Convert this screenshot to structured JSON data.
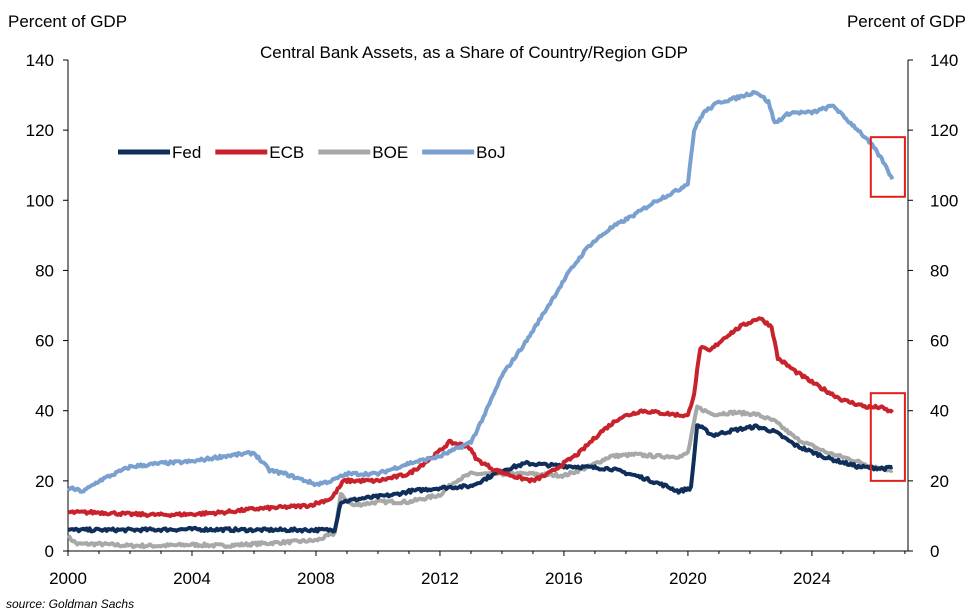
{
  "chart_data": {
    "type": "line",
    "title": "Central Bank Assets, as a Share of Country/Region GDP",
    "ylabel_left": "Percent of GDP",
    "ylabel_right": "Percent of GDP",
    "source": "source: Goldman Sachs",
    "xlim": [
      2000,
      2027.1
    ],
    "ylim": [
      0,
      140
    ],
    "xticks": [
      2000,
      2004,
      2008,
      2012,
      2016,
      2020,
      2024
    ],
    "yticks": [
      0,
      20,
      40,
      60,
      80,
      100,
      120,
      140
    ],
    "legend_position": "top-left",
    "series": [
      {
        "name": "Fed",
        "color": "#0f2f5a",
        "points": [
          [
            2000.0,
            6
          ],
          [
            2001,
            6
          ],
          [
            2002,
            6
          ],
          [
            2004,
            6.2
          ],
          [
            2006,
            6
          ],
          [
            2008.6,
            6
          ],
          [
            2008.8,
            14
          ],
          [
            2009.5,
            15
          ],
          [
            2010.5,
            16
          ],
          [
            2011,
            17
          ],
          [
            2012,
            18
          ],
          [
            2013,
            18.5
          ],
          [
            2014,
            23
          ],
          [
            2014.8,
            25
          ],
          [
            2015.5,
            24.5
          ],
          [
            2016.5,
            24
          ],
          [
            2017.5,
            23.5
          ],
          [
            2018.5,
            21
          ],
          [
            2019.3,
            18.5
          ],
          [
            2019.7,
            17
          ],
          [
            2020.1,
            18
          ],
          [
            2020.3,
            36
          ],
          [
            2020.8,
            33
          ],
          [
            2021.5,
            34.5
          ],
          [
            2022.2,
            35.5
          ],
          [
            2022.8,
            34
          ],
          [
            2023.5,
            30
          ],
          [
            2024.5,
            26.5
          ],
          [
            2025.5,
            24
          ],
          [
            2026.4,
            23.5
          ],
          [
            2026.6,
            24
          ]
        ]
      },
      {
        "name": "ECB",
        "color": "#c8232c",
        "points": [
          [
            2000.0,
            11
          ],
          [
            2001,
            11
          ],
          [
            2002,
            10.5
          ],
          [
            2003,
            10.3
          ],
          [
            2004,
            10.5
          ],
          [
            2005,
            11
          ],
          [
            2006,
            12
          ],
          [
            2007,
            12.5
          ],
          [
            2007.8,
            13
          ],
          [
            2008.5,
            15
          ],
          [
            2008.9,
            20
          ],
          [
            2009.5,
            20
          ],
          [
            2010,
            20
          ],
          [
            2011,
            22
          ],
          [
            2011.8,
            27
          ],
          [
            2012.3,
            31
          ],
          [
            2012.9,
            30
          ],
          [
            2013.2,
            26
          ],
          [
            2013.8,
            23
          ],
          [
            2014.5,
            21
          ],
          [
            2015,
            20
          ],
          [
            2015.5,
            22
          ],
          [
            2016,
            25
          ],
          [
            2016.5,
            28
          ],
          [
            2017.2,
            34
          ],
          [
            2017.8,
            38
          ],
          [
            2018.5,
            40
          ],
          [
            2019.5,
            39
          ],
          [
            2020.0,
            38.5
          ],
          [
            2020.2,
            45
          ],
          [
            2020.4,
            58
          ],
          [
            2020.7,
            57
          ],
          [
            2021.2,
            61
          ],
          [
            2021.7,
            64
          ],
          [
            2022.3,
            66.5
          ],
          [
            2022.7,
            64
          ],
          [
            2022.9,
            55
          ],
          [
            2023.5,
            51
          ],
          [
            2024.2,
            47
          ],
          [
            2025,
            43
          ],
          [
            2025.8,
            41
          ],
          [
            2026.2,
            41
          ],
          [
            2026.6,
            39.5
          ]
        ]
      },
      {
        "name": "BOE",
        "color": "#a8a8a8",
        "points": [
          [
            2000.0,
            4
          ],
          [
            2000.3,
            2
          ],
          [
            2001,
            2
          ],
          [
            2002,
            1.5
          ],
          [
            2003,
            1.5
          ],
          [
            2004,
            1.8
          ],
          [
            2005,
            1.5
          ],
          [
            2006,
            2
          ],
          [
            2007,
            2.5
          ],
          [
            2008,
            3
          ],
          [
            2008.6,
            5
          ],
          [
            2008.8,
            16
          ],
          [
            2009.2,
            13
          ],
          [
            2010,
            14
          ],
          [
            2011,
            14
          ],
          [
            2012,
            16
          ],
          [
            2012.5,
            20
          ],
          [
            2013,
            22
          ],
          [
            2014,
            22
          ],
          [
            2015,
            22
          ],
          [
            2016,
            21.5
          ],
          [
            2016.8,
            24
          ],
          [
            2017.5,
            27
          ],
          [
            2018.3,
            27.5
          ],
          [
            2019,
            27
          ],
          [
            2019.8,
            27
          ],
          [
            2020.0,
            28
          ],
          [
            2020.3,
            41
          ],
          [
            2020.8,
            39
          ],
          [
            2021.5,
            39.5
          ],
          [
            2022.2,
            39
          ],
          [
            2022.8,
            37
          ],
          [
            2023.5,
            32
          ],
          [
            2024.5,
            28
          ],
          [
            2025.3,
            26
          ],
          [
            2026,
            24
          ],
          [
            2026.6,
            23
          ]
        ]
      },
      {
        "name": "BoJ",
        "color": "#7aa0d0",
        "points": [
          [
            2000.0,
            18
          ],
          [
            2000.5,
            17
          ],
          [
            2001,
            20
          ],
          [
            2001.5,
            22
          ],
          [
            2002,
            24
          ],
          [
            2003,
            25
          ],
          [
            2004,
            25.5
          ],
          [
            2005,
            27
          ],
          [
            2006,
            28
          ],
          [
            2006.5,
            23
          ],
          [
            2007,
            22
          ],
          [
            2008,
            19
          ],
          [
            2008.5,
            20
          ],
          [
            2009,
            22
          ],
          [
            2010,
            22
          ],
          [
            2011,
            25
          ],
          [
            2012,
            27
          ],
          [
            2013.0,
            31
          ],
          [
            2013.5,
            40
          ],
          [
            2014,
            50
          ],
          [
            2014.8,
            60
          ],
          [
            2015.5,
            70
          ],
          [
            2016.2,
            80
          ],
          [
            2016.8,
            87
          ],
          [
            2017.5,
            92
          ],
          [
            2018.3,
            96
          ],
          [
            2019,
            100
          ],
          [
            2019.7,
            103
          ],
          [
            2020.0,
            105
          ],
          [
            2020.2,
            120
          ],
          [
            2020.5,
            125
          ],
          [
            2021,
            128
          ],
          [
            2021.5,
            129
          ],
          [
            2022.2,
            131
          ],
          [
            2022.6,
            128
          ],
          [
            2022.8,
            122
          ],
          [
            2023.3,
            125
          ],
          [
            2024.0,
            125
          ],
          [
            2024.7,
            127
          ],
          [
            2025.0,
            124
          ],
          [
            2025.5,
            120
          ],
          [
            2026.0,
            115
          ],
          [
            2026.3,
            111
          ],
          [
            2026.6,
            106
          ]
        ]
      }
    ],
    "annotations": [
      {
        "type": "box",
        "color": "#e0201a",
        "x_range": [
          2025.9,
          2027.0
        ],
        "y_range": [
          101,
          118
        ]
      },
      {
        "type": "box",
        "color": "#e0201a",
        "x_range": [
          2025.9,
          2027.0
        ],
        "y_range": [
          20,
          45
        ]
      }
    ]
  }
}
